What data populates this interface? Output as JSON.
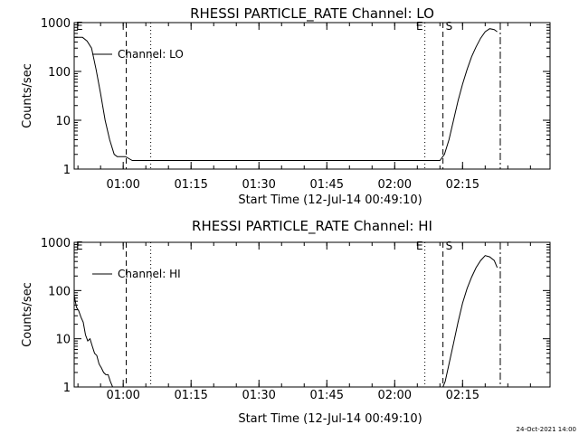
{
  "chart_data": [
    {
      "type": "line",
      "title": "RHESSI PARTICLE_RATE Channel: LO",
      "xlabel": "Start Time (12-Jul-14 00:49:10)",
      "ylabel": "Counts/sec",
      "y_scale": "log",
      "xlim": [
        "00:49:10",
        "02:34:20"
      ],
      "ylim": [
        1,
        1000
      ],
      "x_ticks": [
        "01:00",
        "01:15",
        "01:30",
        "01:45",
        "02:00",
        "02:15"
      ],
      "y_ticks": [
        "1",
        "10",
        "100",
        "1000"
      ],
      "legend": {
        "position": "top-left",
        "entries": [
          "Channel: LO"
        ]
      },
      "markers": [
        {
          "type": "dashed",
          "x": "01:00:40",
          "label": ""
        },
        {
          "type": "dotted",
          "x": "01:06:05",
          "label": ""
        },
        {
          "type": "dotted",
          "x": "02:06:40",
          "label": "E"
        },
        {
          "type": "dashed",
          "x": "02:10:40",
          "label": "S"
        },
        {
          "type": "dashdot",
          "x": "02:23:20",
          "label": ""
        }
      ],
      "corner_label": "E",
      "series": [
        {
          "name": "Channel: LO",
          "x": [
            "00:49:10",
            "00:51:00",
            "00:52:00",
            "00:53:00",
            "00:54:00",
            "00:55:00",
            "00:56:00",
            "00:57:00",
            "00:58:00",
            "00:58:40",
            "00:59:30",
            "01:00:30",
            "01:02:00",
            "01:05:00",
            "01:08:00",
            "01:11:00",
            "01:14:00",
            "01:17:00",
            "01:20:00",
            "01:23:00",
            "01:26:00",
            "01:29:00",
            "01:32:00",
            "01:35:00",
            "01:38:00",
            "01:41:00",
            "01:44:00",
            "01:47:00",
            "01:50:00",
            "01:53:00",
            "01:56:00",
            "01:59:00",
            "02:02:00",
            "02:05:00",
            "02:08:00",
            "02:10:00",
            "02:11:00",
            "02:12:00",
            "02:13:00",
            "02:14:00",
            "02:15:00",
            "02:16:00",
            "02:17:00",
            "02:18:00",
            "02:19:00",
            "02:20:00",
            "02:21:00",
            "02:22:00",
            "02:22:40"
          ],
          "values": [
            500,
            500,
            420,
            300,
            110,
            35,
            10,
            4,
            2,
            1.8,
            1.8,
            1.8,
            1.5,
            1.5,
            1.5,
            1.5,
            1.5,
            1.5,
            1.5,
            1.5,
            1.5,
            1.5,
            1.5,
            1.5,
            1.5,
            1.5,
            1.5,
            1.5,
            1.5,
            1.5,
            1.5,
            1.5,
            1.5,
            1.5,
            1.5,
            1.5,
            2,
            4,
            10,
            25,
            55,
            110,
            200,
            320,
            480,
            650,
            750,
            720,
            650
          ]
        }
      ]
    },
    {
      "type": "line",
      "title": "RHESSI PARTICLE_RATE Channel: HI",
      "xlabel": "Start Time (12-Jul-14 00:49:10)",
      "ylabel": "Counts/sec",
      "y_scale": "log",
      "xlim": [
        "00:49:10",
        "02:34:20"
      ],
      "ylim": [
        1,
        1000
      ],
      "x_ticks": [
        "01:00",
        "01:15",
        "01:30",
        "01:45",
        "02:00",
        "02:15"
      ],
      "y_ticks": [
        "1",
        "10",
        "100",
        "1000"
      ],
      "legend": {
        "position": "top-left",
        "entries": [
          "Channel: HI"
        ]
      },
      "markers": [
        {
          "type": "dashed",
          "x": "01:00:40",
          "label": ""
        },
        {
          "type": "dotted",
          "x": "01:06:05",
          "label": ""
        },
        {
          "type": "dotted",
          "x": "02:06:40",
          "label": "E"
        },
        {
          "type": "dashed",
          "x": "02:10:40",
          "label": "S"
        },
        {
          "type": "dashdot",
          "x": "02:23:20",
          "label": ""
        }
      ],
      "corner_label": "E",
      "series": [
        {
          "name": "Channel: HI",
          "x": [
            "00:49:10",
            "00:49:40",
            "00:50:10",
            "00:50:40",
            "00:51:10",
            "00:51:40",
            "00:52:10",
            "00:52:40",
            "00:53:10",
            "00:53:40",
            "00:54:10",
            "00:54:40",
            "00:55:10",
            "00:55:40",
            "00:56:10",
            "00:56:40",
            "00:57:10",
            "00:57:40",
            "00:58:00",
            "02:10:40",
            "02:11:10",
            "02:12:00",
            "02:13:00",
            "02:14:00",
            "02:15:00",
            "02:16:00",
            "02:17:00",
            "02:18:00",
            "02:19:00",
            "02:20:00",
            "02:21:00",
            "02:22:00",
            "02:22:40"
          ],
          "values": [
            80,
            45,
            38,
            28,
            22,
            12,
            9,
            10,
            7,
            5,
            4.5,
            3,
            2.5,
            2,
            1.8,
            1.8,
            1.3,
            1,
            1,
            1,
            1.3,
            3,
            8,
            22,
            55,
            110,
            190,
            300,
            420,
            530,
            500,
            420,
            300
          ]
        }
      ]
    }
  ],
  "footer": {
    "timestamp": "24-Oct-2021 14:00"
  }
}
